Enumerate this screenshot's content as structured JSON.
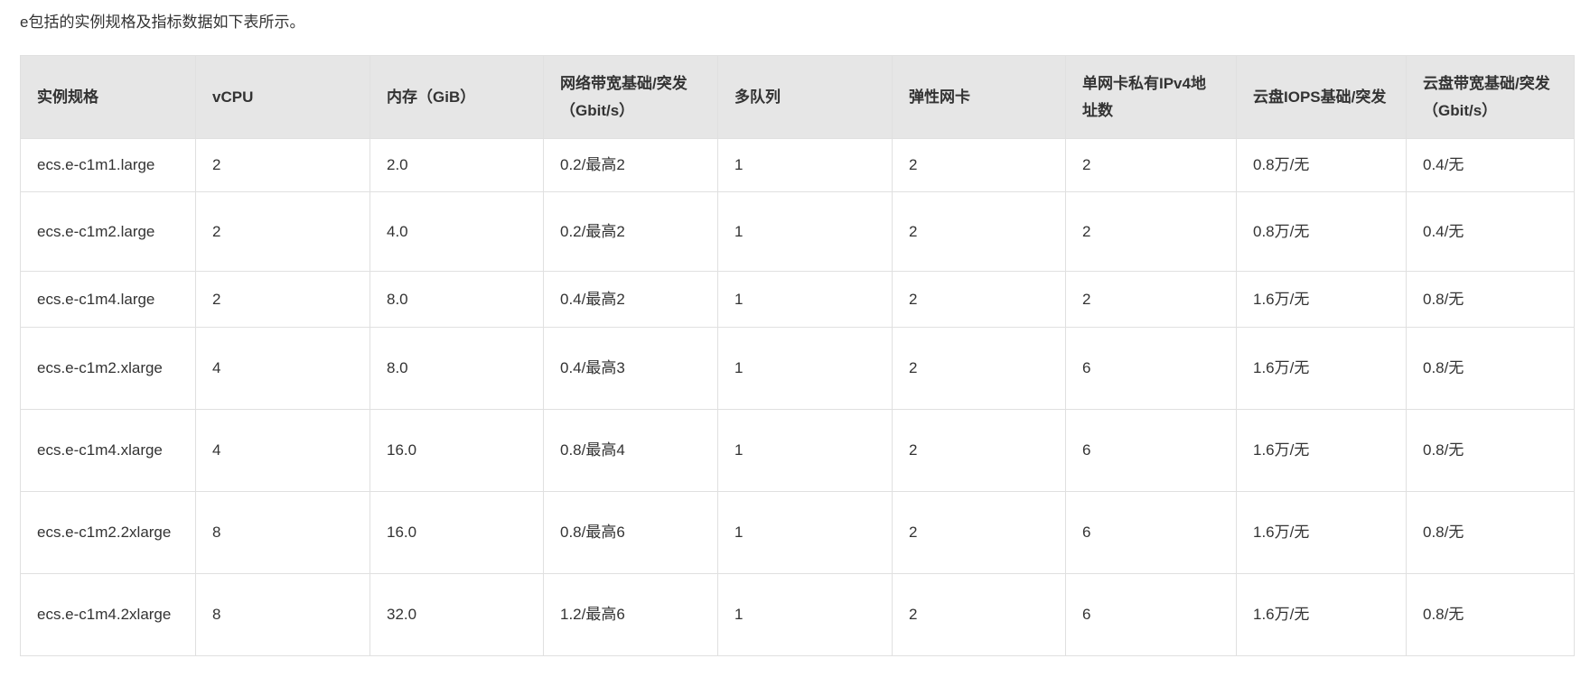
{
  "intro": "e包括的实例规格及指标数据如下表所示。",
  "table": {
    "headers": [
      "实例规格",
      "vCPU",
      "内存（GiB）",
      "网络带宽基础/突发（Gbit/s）",
      "多队列",
      "弹性网卡",
      "单网卡私有IPv4地址数",
      "云盘IOPS基础/突发",
      "云盘带宽基础/突发（Gbit/s）"
    ],
    "rows": [
      [
        "ecs.e-c1m1.large",
        "2",
        "2.0",
        "0.2/最高2",
        "1",
        "2",
        "2",
        "0.8万/无",
        "0.4/无"
      ],
      [
        "ecs.e-c1m2.large",
        "2",
        "4.0",
        "0.2/最高2",
        "1",
        "2",
        "2",
        "0.8万/无",
        "0.4/无"
      ],
      [
        "ecs.e-c1m4.large",
        "2",
        "8.0",
        "0.4/最高2",
        "1",
        "2",
        "2",
        "1.6万/无",
        "0.8/无"
      ],
      [
        "ecs.e-c1m2.xlarge",
        "4",
        "8.0",
        "0.4/最高3",
        "1",
        "2",
        "6",
        "1.6万/无",
        "0.8/无"
      ],
      [
        "ecs.e-c1m4.xlarge",
        "4",
        "16.0",
        "0.8/最高4",
        "1",
        "2",
        "6",
        "1.6万/无",
        "0.8/无"
      ],
      [
        "ecs.e-c1m2.2xlarge",
        "8",
        "16.0",
        "0.8/最高6",
        "1",
        "2",
        "6",
        "1.6万/无",
        "0.8/无"
      ],
      [
        "ecs.e-c1m4.2xlarge",
        "8",
        "32.0",
        "1.2/最高6",
        "1",
        "2",
        "6",
        "1.6万/无",
        "0.8/无"
      ]
    ]
  }
}
